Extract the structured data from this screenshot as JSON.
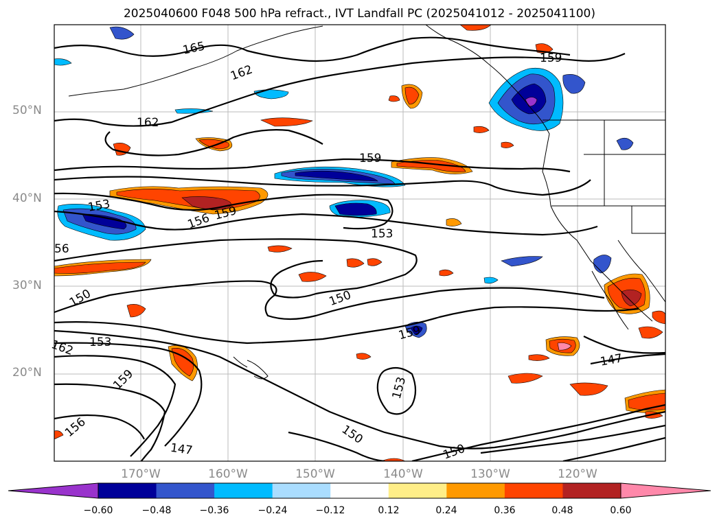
{
  "title": "2025040600 F048 500 hPa refract., IVT Landfall PC (2025041012 - 2025041100)",
  "lat_labels": [
    "50°N",
    "40°N",
    "30°N",
    "20°N"
  ],
  "lon_labels": [
    "170°W",
    "160°W",
    "150°W",
    "140°W",
    "130°W",
    "120°W"
  ],
  "contour_labels": [
    "165",
    "162",
    "162",
    "159",
    "159",
    "156",
    "153",
    "153",
    "150",
    "150",
    "150",
    "150",
    "147",
    "147",
    "159",
    "153",
    "162",
    "159",
    "156",
    "56",
    "159",
    "153"
  ],
  "colorbar": {
    "colors": [
      "#9933cc",
      "#000099",
      "#3355cc",
      "#00bbff",
      "#aaddff",
      "#ffffff",
      "#ffee88",
      "#ff9900",
      "#ff4400",
      "#b22222",
      "#ff88aa"
    ],
    "ticks": [
      "−0.60",
      "−0.48",
      "−0.36",
      "−0.24",
      "−0.12",
      "0.12",
      "0.24",
      "0.36",
      "0.48",
      "0.60"
    ]
  }
}
